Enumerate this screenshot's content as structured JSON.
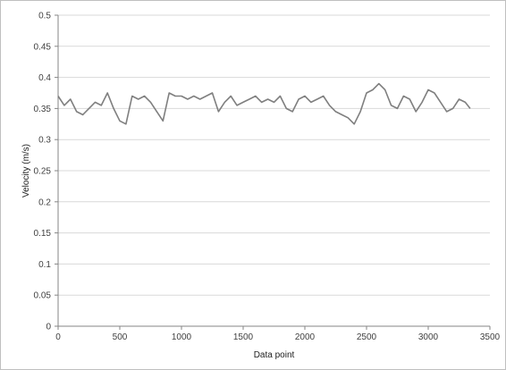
{
  "chart_data": {
    "type": "line",
    "title": "",
    "xlabel": "Data point",
    "ylabel": "Velocity (m/s)",
    "xlim": [
      0,
      3500
    ],
    "ylim": [
      0,
      0.5
    ],
    "x_ticks": [
      0,
      500,
      1000,
      1500,
      2000,
      2500,
      3000,
      3500
    ],
    "x_tick_labels": [
      "0",
      "500",
      "1000",
      "1500",
      "2000",
      "2500",
      "3000",
      "3500"
    ],
    "y_ticks": [
      0,
      0.05,
      0.1,
      0.15,
      0.2,
      0.25,
      0.3,
      0.35,
      0.4,
      0.45,
      0.5
    ],
    "y_tick_labels": [
      "0",
      "0.05",
      "0.1",
      "0.15",
      "0.2",
      "0.25",
      "0.3",
      "0.35",
      "0.4",
      "0.45",
      "0.5"
    ],
    "grid": "horizontal",
    "legend": "none",
    "series": [
      {
        "color": "#7f7f7f",
        "x": [
          0,
          50,
          100,
          150,
          200,
          250,
          300,
          350,
          400,
          450,
          500,
          550,
          600,
          650,
          700,
          750,
          800,
          850,
          900,
          950,
          1000,
          1050,
          1100,
          1150,
          1200,
          1250,
          1300,
          1350,
          1400,
          1450,
          1500,
          1550,
          1600,
          1650,
          1700,
          1750,
          1800,
          1850,
          1900,
          1950,
          2000,
          2050,
          2100,
          2150,
          2200,
          2250,
          2300,
          2350,
          2400,
          2450,
          2500,
          2550,
          2600,
          2650,
          2700,
          2750,
          2800,
          2850,
          2900,
          2950,
          3000,
          3050,
          3100,
          3150,
          3200,
          3250,
          3300,
          3340
        ],
        "values": [
          0.37,
          0.355,
          0.365,
          0.345,
          0.34,
          0.35,
          0.36,
          0.355,
          0.375,
          0.35,
          0.33,
          0.325,
          0.37,
          0.365,
          0.37,
          0.36,
          0.345,
          0.33,
          0.375,
          0.37,
          0.37,
          0.365,
          0.37,
          0.365,
          0.37,
          0.375,
          0.345,
          0.36,
          0.37,
          0.355,
          0.36,
          0.365,
          0.37,
          0.36,
          0.365,
          0.36,
          0.37,
          0.35,
          0.345,
          0.365,
          0.37,
          0.36,
          0.365,
          0.37,
          0.355,
          0.345,
          0.34,
          0.335,
          0.325,
          0.345,
          0.375,
          0.38,
          0.39,
          0.38,
          0.355,
          0.35,
          0.37,
          0.365,
          0.345,
          0.36,
          0.38,
          0.375,
          0.36,
          0.345,
          0.35,
          0.365,
          0.36,
          0.35
        ]
      }
    ]
  }
}
